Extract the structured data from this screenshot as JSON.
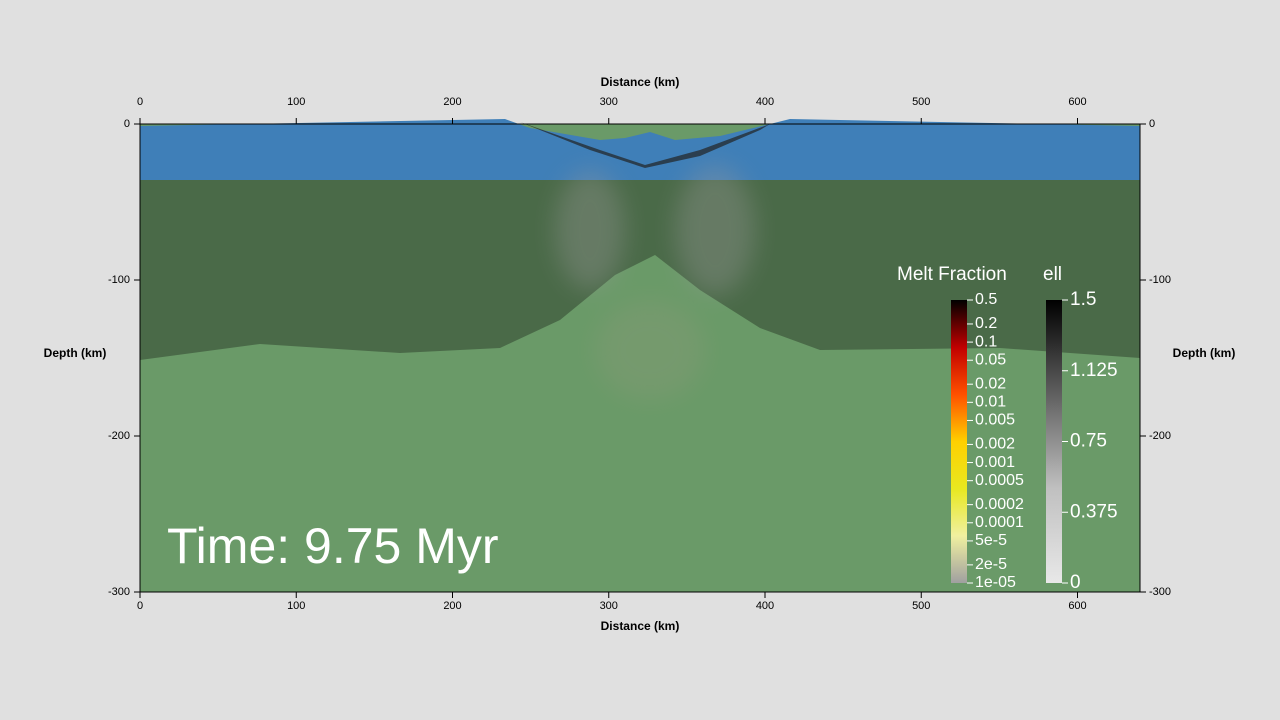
{
  "chart_data": {
    "type": "field",
    "xlabel": "Distance (km)",
    "ylabel": "Depth (km)",
    "xlim": [
      0,
      640
    ],
    "xticks": [
      0,
      100,
      200,
      300,
      400,
      500,
      600
    ],
    "ylim": [
      -300,
      0
    ],
    "yticks": [
      0,
      -100,
      -200,
      -300
    ],
    "annotation": "Time: 9.75 Myr",
    "colorbars": [
      {
        "title": "Melt Fraction",
        "scale": "log",
        "lim": [
          1e-05,
          0.5
        ],
        "colors": [
          "#000000",
          "#c00000",
          "#ff5000",
          "#ffd000",
          "#e8e820",
          "#f0f0a0",
          "#a0a0a0"
        ],
        "ticks": [
          0.5,
          0.2,
          0.1,
          0.05,
          0.02,
          0.01,
          0.005,
          0.002,
          0.001,
          0.0005,
          0.0002,
          0.0001,
          {
            "value": 5e-05,
            "label": "5e-5"
          },
          {
            "value": 2e-05,
            "label": "2e-5"
          },
          {
            "value": 1e-05,
            "label": "1e-05"
          }
        ]
      },
      {
        "title": "ell",
        "scale": "linear",
        "lim": [
          0,
          1.5
        ],
        "colors": [
          "#000000",
          "#606060",
          "#c0c0c0",
          "#e8e8e8"
        ],
        "ticks": [
          1.5,
          1.125,
          0.75,
          0.375,
          0
        ]
      }
    ]
  }
}
